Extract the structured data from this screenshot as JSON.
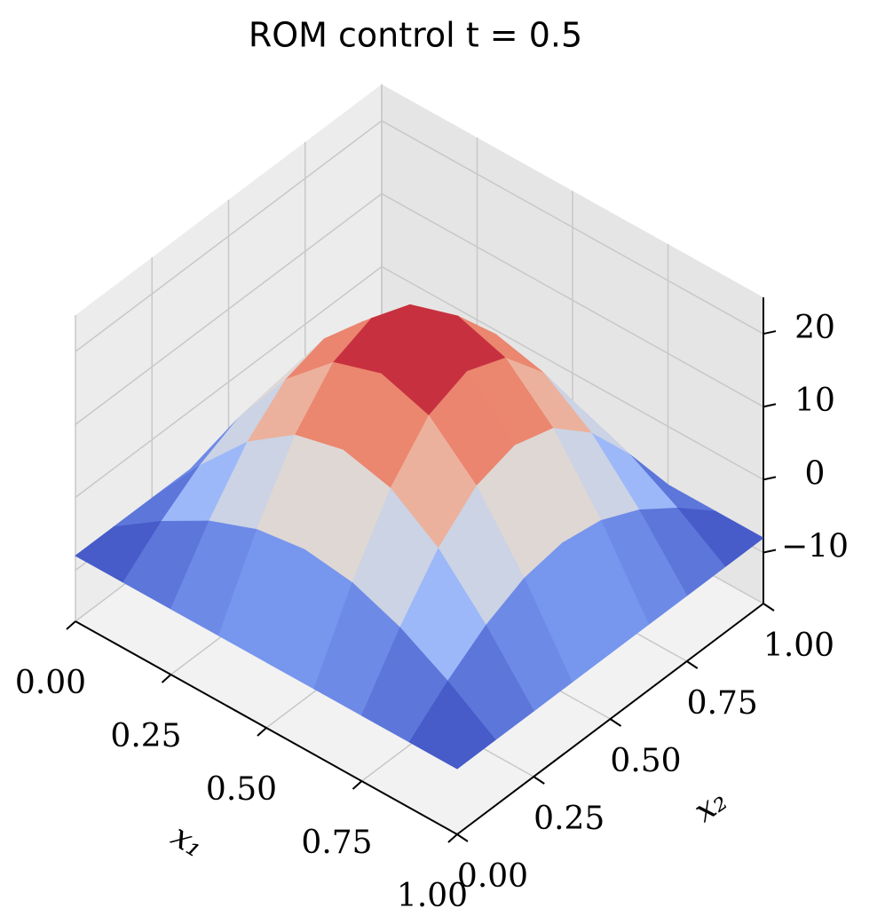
{
  "chart_data": {
    "type": "surface",
    "title": "ROM control t = 0.5",
    "xlabel": "x₁",
    "ylabel": "x₂",
    "x": [
      0,
      0.125,
      0.25,
      0.375,
      0.5,
      0.625,
      0.75,
      0.875,
      1
    ],
    "y": [
      0,
      0.125,
      0.25,
      0.375,
      0.5,
      0.625,
      0.75,
      0.875,
      1
    ],
    "z": [
      [
        -8,
        -8,
        -8,
        -8,
        -8,
        -8,
        -8,
        -8,
        -8
      ],
      [
        -8,
        -3.6,
        0.1,
        2.6,
        3.5,
        2.6,
        0.1,
        -3.6,
        -8
      ],
      [
        -8,
        0.1,
        7,
        11.6,
        13.2,
        11.6,
        7,
        0.1,
        -8
      ],
      [
        -8,
        2.6,
        11.6,
        17.6,
        19.7,
        17.6,
        11.6,
        2.6,
        -8
      ],
      [
        -8,
        3.5,
        13.2,
        19.7,
        22,
        19.7,
        13.2,
        3.5,
        -8
      ],
      [
        -8,
        2.6,
        11.6,
        17.6,
        19.7,
        17.6,
        11.6,
        2.6,
        -8
      ],
      [
        -8,
        0.1,
        7,
        11.6,
        13.2,
        11.6,
        7,
        0.1,
        -8
      ],
      [
        -8,
        -3.6,
        0.1,
        2.6,
        3.5,
        2.6,
        0.1,
        -3.6,
        -8
      ],
      [
        -8,
        -8,
        -8,
        -8,
        -8,
        -8,
        -8,
        -8,
        -8
      ]
    ],
    "colormap": "coolwarm",
    "xlim": [
      0,
      1
    ],
    "ylim": [
      0,
      1
    ],
    "zlim": [
      -17,
      25
    ],
    "xticks": [
      {
        "value": 0,
        "label": "0.00"
      },
      {
        "value": 0.25,
        "label": "0.25"
      },
      {
        "value": 0.5,
        "label": "0.50"
      },
      {
        "value": 0.75,
        "label": "0.75"
      },
      {
        "value": 1,
        "label": "1.00"
      }
    ],
    "yticks": [
      {
        "value": 0,
        "label": "0.00"
      },
      {
        "value": 0.25,
        "label": "0.25"
      },
      {
        "value": 0.5,
        "label": "0.50"
      },
      {
        "value": 0.75,
        "label": "0.75"
      },
      {
        "value": 1,
        "label": "1.00"
      }
    ],
    "zticks": [
      {
        "value": -10,
        "label": "−10"
      },
      0,
      10,
      20
    ],
    "grid": true
  }
}
